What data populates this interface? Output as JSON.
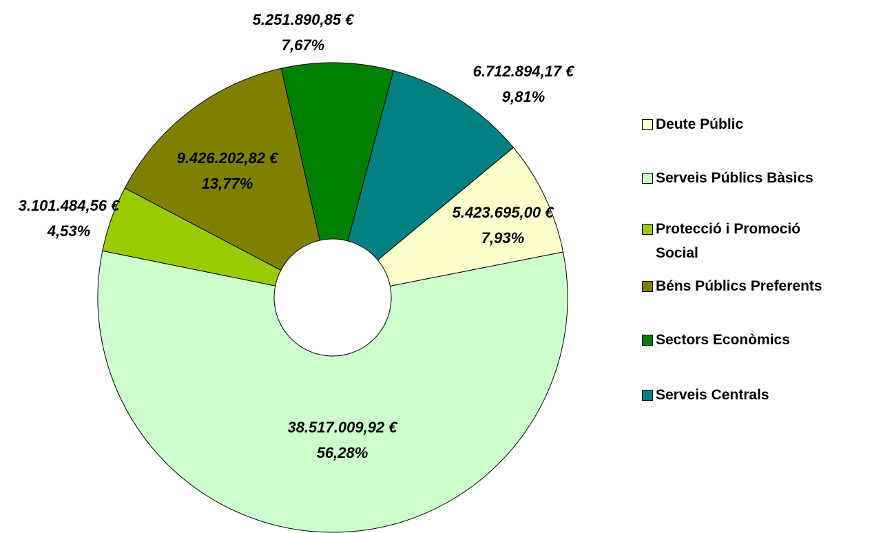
{
  "chart_data": {
    "type": "donut",
    "categories": [
      "Deute Públic",
      "Serveis Públics Bàsics",
      "Protecció i Promoció Social",
      "Béns Públics Preferents",
      "Sectors Econòmics",
      "Serveis Centrals"
    ],
    "values": [
      5423695.0,
      38517009.92,
      3101484.56,
      9426202.82,
      5251890.85,
      6712894.17
    ],
    "value_labels": [
      "5.423.695,00 €",
      "38.517.009,92 €",
      "3.101.484,56 €",
      "9.426.202,82 €",
      "5.251.890,85 €",
      "6.712.894,17 €"
    ],
    "percentages": [
      7.93,
      56.28,
      4.53,
      13.77,
      7.67,
      9.81
    ],
    "percentage_labels": [
      "7,93%",
      "56,28%",
      "4,53%",
      "13,77%",
      "7,67%",
      "9,81%"
    ],
    "colors": [
      "#ffffcc",
      "#ccffcc",
      "#99cc00",
      "#808000",
      "#008000",
      "#008080"
    ]
  }
}
